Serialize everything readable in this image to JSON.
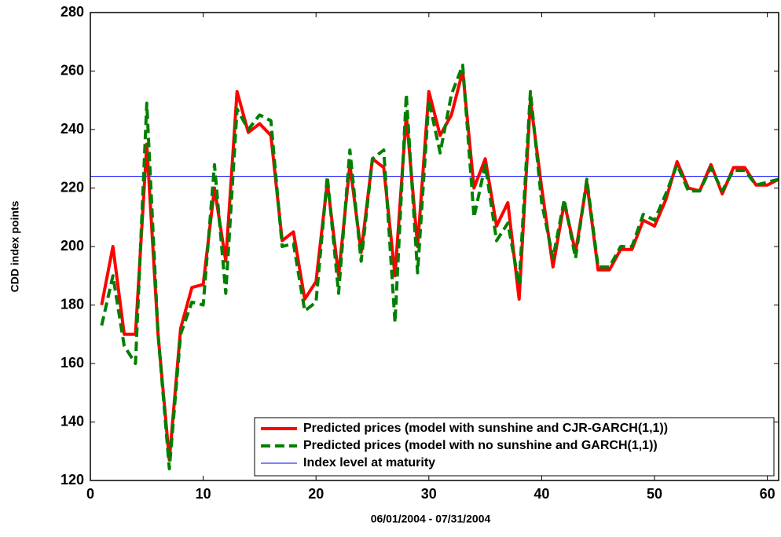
{
  "chart_data": {
    "type": "line",
    "xlabel": "06/01/2004 - 07/31/2004",
    "ylabel": "CDD index points",
    "x": [
      1,
      2,
      3,
      4,
      5,
      6,
      7,
      8,
      9,
      10,
      11,
      12,
      13,
      14,
      15,
      16,
      17,
      18,
      19,
      20,
      21,
      22,
      23,
      24,
      25,
      26,
      27,
      28,
      29,
      30,
      31,
      32,
      33,
      34,
      35,
      36,
      37,
      38,
      39,
      40,
      41,
      42,
      43,
      44,
      45,
      46,
      47,
      48,
      49,
      50,
      51,
      52,
      53,
      54,
      55,
      56,
      57,
      58,
      59,
      60,
      61
    ],
    "series": [
      {
        "name": "Predicted prices (model with sunshine and CJR-GARCH(1,1))",
        "color": "#ff0000",
        "style": "solid",
        "values": [
          180,
          200,
          170,
          170,
          235,
          170,
          127,
          172,
          186,
          187,
          220,
          195,
          253,
          239,
          242,
          238,
          202,
          205,
          182,
          188,
          222,
          190,
          228,
          198,
          230,
          227,
          190,
          245,
          200,
          253,
          238,
          245,
          260,
          220,
          230,
          207,
          215,
          182,
          250,
          220,
          193,
          215,
          198,
          222,
          192,
          192,
          199,
          199,
          209,
          207,
          216,
          229,
          220,
          219,
          228,
          218,
          227,
          227,
          221,
          221,
          223
        ]
      },
      {
        "name": "Predicted prices (model with no sunshine and GARCH(1,1))",
        "color": "#008000",
        "style": "dashed",
        "values": [
          173,
          190,
          166,
          160,
          249,
          170,
          124,
          170,
          181,
          180,
          228,
          184,
          247,
          240,
          245,
          243,
          200,
          201,
          178,
          181,
          224,
          184,
          233,
          195,
          230,
          233,
          174,
          252,
          191,
          250,
          232,
          252,
          262,
          210,
          228,
          202,
          208,
          187,
          253,
          215,
          196,
          216,
          196,
          223,
          193,
          193,
          200,
          200,
          211,
          209,
          218,
          228,
          219,
          219,
          227,
          219,
          226,
          226,
          221,
          222,
          223
        ]
      }
    ],
    "reference_line": {
      "name": "Index level at maturity",
      "color": "#0000ff",
      "value": 224
    },
    "xlim": [
      0,
      61
    ],
    "xticks": [
      0,
      10,
      20,
      30,
      40,
      50,
      60
    ],
    "ylim": [
      120,
      280
    ],
    "yticks": [
      120,
      140,
      160,
      180,
      200,
      220,
      240,
      260,
      280
    ],
    "legend": "lower-right"
  }
}
